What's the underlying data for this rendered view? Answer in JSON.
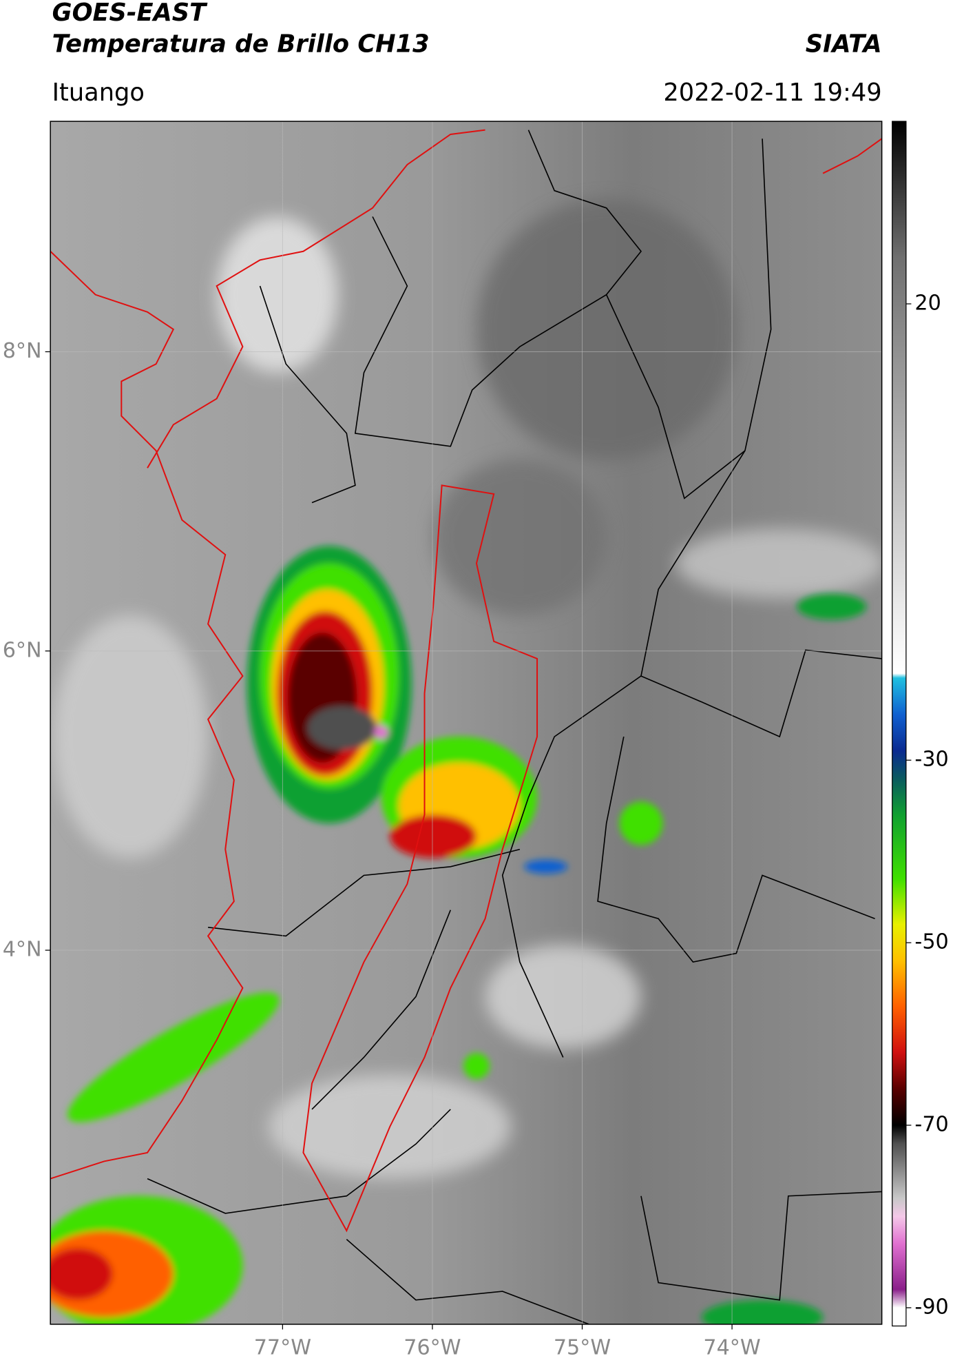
{
  "chart_data": {
    "type": "map",
    "title": "GOES-EAST",
    "subtitle": "Temperatura de Brillo CH13",
    "source": "SIATA",
    "location": "Ituango",
    "datetime": "2022-02-11 19:49",
    "xlim": [
      -78.55,
      -73.0
    ],
    "ylim": [
      1.5,
      9.54
    ],
    "xticks": [
      {
        "value": -77,
        "label": "77°W"
      },
      {
        "value": -76,
        "label": "76°W"
      },
      {
        "value": -75,
        "label": "75°W"
      },
      {
        "value": -74,
        "label": "74°W"
      }
    ],
    "yticks": [
      {
        "value": 4,
        "label": "4°N"
      },
      {
        "value": 6,
        "label": "6°N"
      },
      {
        "value": 8,
        "label": "8°N"
      }
    ],
    "grid": true,
    "colorbar": {
      "lim": [
        -92,
        40
      ],
      "ticks": [
        20,
        -30,
        -50,
        -70,
        -90
      ],
      "colorscale": [
        [
          -92,
          "#ffffff"
        ],
        [
          -90,
          "#ffffff"
        ],
        [
          -88,
          "#8a1f8a"
        ],
        [
          -83,
          "#e070d0"
        ],
        [
          -80,
          "#f4c8e8"
        ],
        [
          -78,
          "#c8c8c8"
        ],
        [
          -72,
          "#505050"
        ],
        [
          -70,
          "#000000"
        ],
        [
          -66,
          "#5a0000"
        ],
        [
          -62,
          "#d01010"
        ],
        [
          -57,
          "#ff6000"
        ],
        [
          -52,
          "#ffc000"
        ],
        [
          -48,
          "#e8f000"
        ],
        [
          -43,
          "#40e000"
        ],
        [
          -36,
          "#10a030"
        ],
        [
          -32,
          "#0a5a60"
        ],
        [
          -29,
          "#0a2a90"
        ],
        [
          -25,
          "#1060d0"
        ],
        [
          -21,
          "#20c0e0"
        ],
        [
          -20.5,
          "#ffffff"
        ],
        [
          -15,
          "#f0f0f0"
        ],
        [
          10,
          "#a0a0a0"
        ],
        [
          25,
          "#707070"
        ],
        [
          40,
          "#000000"
        ]
      ]
    }
  }
}
